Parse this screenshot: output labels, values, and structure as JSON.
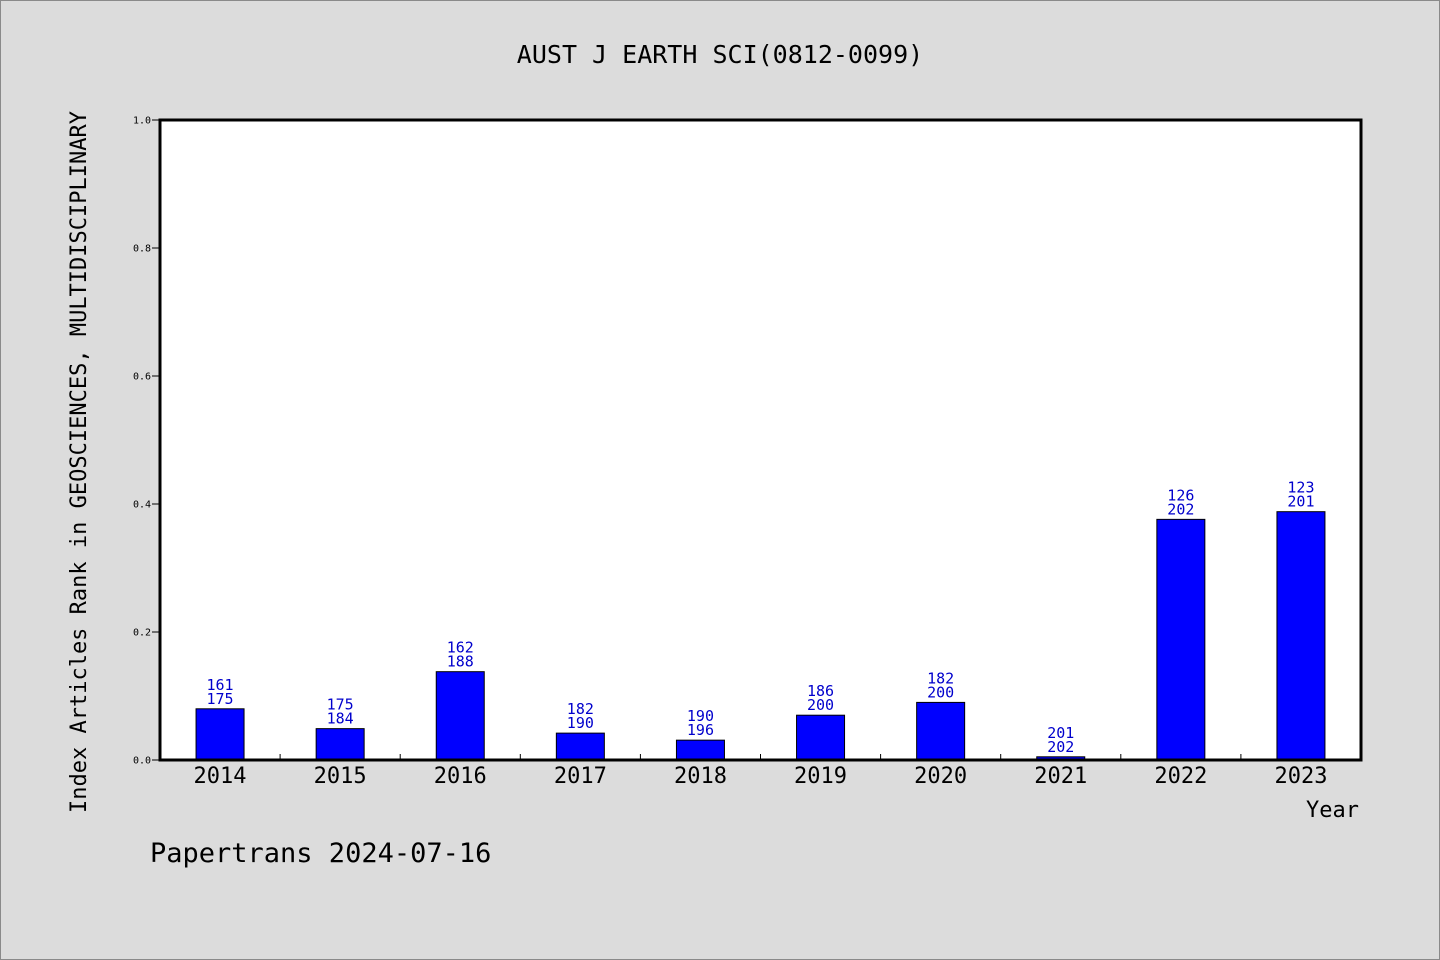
{
  "chart_data": {
    "type": "bar",
    "title": "AUST J EARTH SCI(0812-0099)",
    "xlabel": "Year",
    "ylabel": "Index Articles Rank in GEOSCIENCES, MULTIDISCIPLINARY",
    "ylim": [
      0,
      1.0
    ],
    "yticks": [
      "0.0",
      "0.2",
      "0.4",
      "0.6",
      "0.8",
      "1.0"
    ],
    "categories": [
      "2014",
      "2015",
      "2016",
      "2017",
      "2018",
      "2019",
      "2020",
      "2021",
      "2022",
      "2023"
    ],
    "values": [
      0.08,
      0.049,
      0.138,
      0.042,
      0.031,
      0.07,
      0.09,
      0.005,
      0.376,
      0.388
    ],
    "labels_top": [
      "161",
      "175",
      "162",
      "182",
      "190",
      "186",
      "182",
      "201",
      "126",
      "123"
    ],
    "labels_bottom": [
      "175",
      "184",
      "188",
      "190",
      "196",
      "200",
      "200",
      "202",
      "202",
      "201"
    ],
    "bar_color": "#0000ff",
    "label_color": "#0000cc",
    "grid": false,
    "legend": "none"
  },
  "footer": "Papertrans 2024-07-16"
}
